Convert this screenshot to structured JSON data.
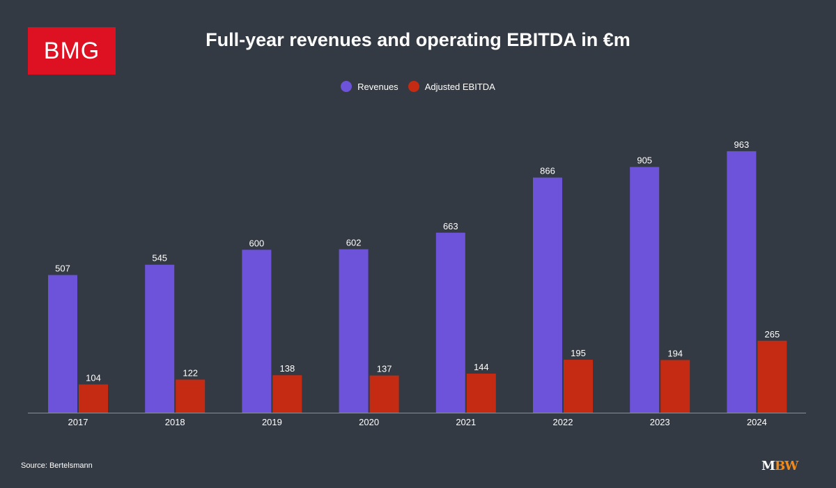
{
  "logo": {
    "text": "BMG",
    "color": "#dd1122"
  },
  "chart_data": {
    "type": "bar",
    "title": "Full-year revenues and operating EBITDA in €m",
    "categories": [
      "2017",
      "2018",
      "2019",
      "2020",
      "2021",
      "2022",
      "2023",
      "2024"
    ],
    "series": [
      {
        "name": "Revenues",
        "color": "#6c53da",
        "values": [
          507,
          545,
          600,
          602,
          663,
          866,
          905,
          963
        ]
      },
      {
        "name": "Adjusted EBITDA",
        "color": "#c52a12",
        "values": [
          104,
          122,
          138,
          137,
          144,
          195,
          194,
          265
        ]
      }
    ],
    "xlabel": "",
    "ylabel": "",
    "ylim": [
      0,
      1000
    ],
    "grid": false,
    "legend": "top-center"
  },
  "footer": {
    "source": "Source: Bertelsmann",
    "brand_m": "M",
    "brand_bw": "BW",
    "brand_m_color": "#ffffff",
    "brand_bw_color": "#f08a1c"
  }
}
